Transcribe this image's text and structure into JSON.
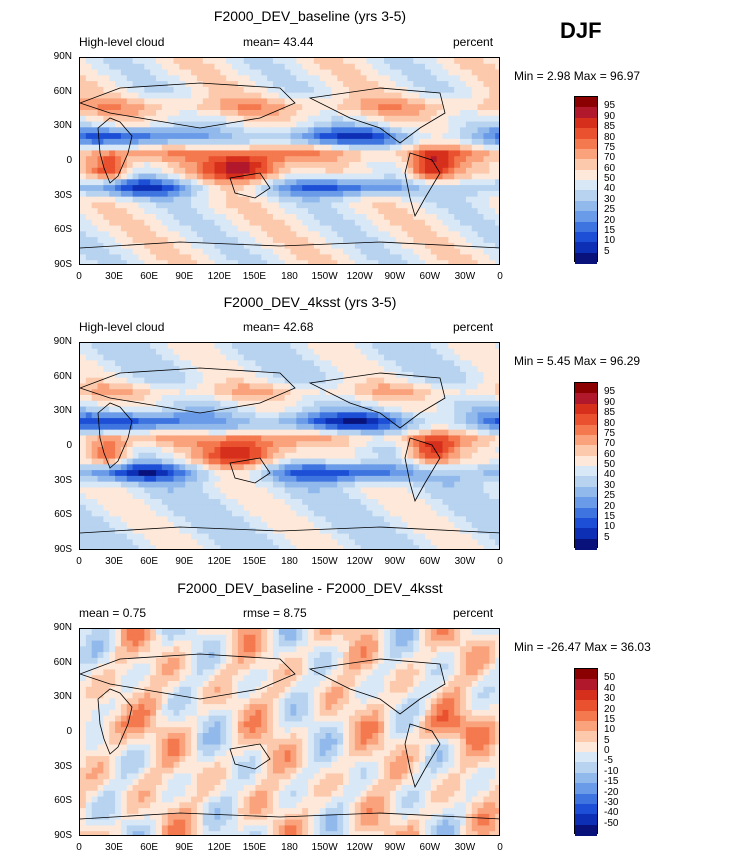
{
  "season": "DJF",
  "chart_data": [
    {
      "type": "heatmap",
      "title": "F2000_DEV_baseline (yrs 3-5)",
      "left_label": "High-level cloud",
      "center_label": "mean=   43.44",
      "right_label": "percent",
      "minmax": "Min =    2.98  Max =   96.97",
      "x_ticks": [
        "0",
        "30E",
        "60E",
        "90E",
        "120E",
        "150E",
        "180",
        "150W",
        "120W",
        "90W",
        "60W",
        "30W",
        "0"
      ],
      "y_ticks": [
        "90N",
        "60N",
        "30N",
        "0",
        "30S",
        "60S",
        "90S"
      ],
      "levels": [
        "95",
        "90",
        "85",
        "80",
        "75",
        "70",
        "60",
        "50",
        "40",
        "30",
        "25",
        "20",
        "15",
        "10",
        "5"
      ],
      "colors": [
        "#8b0000",
        "#b2182b",
        "#d6301d",
        "#e9512f",
        "#f4794f",
        "#f9a27c",
        "#fcc9ac",
        "#fde8d9",
        "#d9e8f7",
        "#b7d3f0",
        "#92b9eb",
        "#6a9be8",
        "#3e74e0",
        "#1c4fd6",
        "#0d2fb5",
        "#08127a"
      ],
      "mean": 43.44,
      "min": 2.98,
      "max": 96.97
    },
    {
      "type": "heatmap",
      "title": "F2000_DEV_4ksst (yrs 3-5)",
      "left_label": "High-level cloud",
      "center_label": "mean=   42.68",
      "right_label": "percent",
      "minmax": "Min =    5.45  Max =   96.29",
      "x_ticks": [
        "0",
        "30E",
        "60E",
        "90E",
        "120E",
        "150E",
        "180",
        "150W",
        "120W",
        "90W",
        "60W",
        "30W",
        "0"
      ],
      "y_ticks": [
        "90N",
        "60N",
        "30N",
        "0",
        "30S",
        "60S",
        "90S"
      ],
      "levels": [
        "95",
        "90",
        "85",
        "80",
        "75",
        "70",
        "60",
        "50",
        "40",
        "30",
        "25",
        "20",
        "15",
        "10",
        "5"
      ],
      "colors": [
        "#8b0000",
        "#b2182b",
        "#d6301d",
        "#e9512f",
        "#f4794f",
        "#f9a27c",
        "#fcc9ac",
        "#fde8d9",
        "#d9e8f7",
        "#b7d3f0",
        "#92b9eb",
        "#6a9be8",
        "#3e74e0",
        "#1c4fd6",
        "#0d2fb5",
        "#08127a"
      ],
      "mean": 42.68,
      "min": 5.45,
      "max": 96.29
    },
    {
      "type": "heatmap",
      "title": "F2000_DEV_baseline - F2000_DEV_4ksst",
      "left_label": "mean =    0.75",
      "center_label": "rmse =    8.75",
      "right_label": "percent",
      "minmax": "Min = -26.47  Max =   36.03",
      "x_ticks": [
        "0",
        "30E",
        "60E",
        "90E",
        "120E",
        "150E",
        "180",
        "150W",
        "120W",
        "90W",
        "60W",
        "30W",
        "0"
      ],
      "y_ticks": [
        "90N",
        "60N",
        "30N",
        "0",
        "30S",
        "60S",
        "90S"
      ],
      "levels": [
        "50",
        "40",
        "30",
        "20",
        "15",
        "10",
        "5",
        "0",
        "-5",
        "-10",
        "-15",
        "-20",
        "-30",
        "-40",
        "-50"
      ],
      "colors": [
        "#8b0000",
        "#b2182b",
        "#d6301d",
        "#e9512f",
        "#f4794f",
        "#f9a27c",
        "#fcc9ac",
        "#fde8d9",
        "#d9e8f7",
        "#b7d3f0",
        "#92b9eb",
        "#6a9be8",
        "#3e74e0",
        "#1c4fd6",
        "#0d2fb5",
        "#08127a"
      ],
      "mean": 0.75,
      "rmse": 8.75,
      "min": -26.47,
      "max": 36.03
    }
  ]
}
